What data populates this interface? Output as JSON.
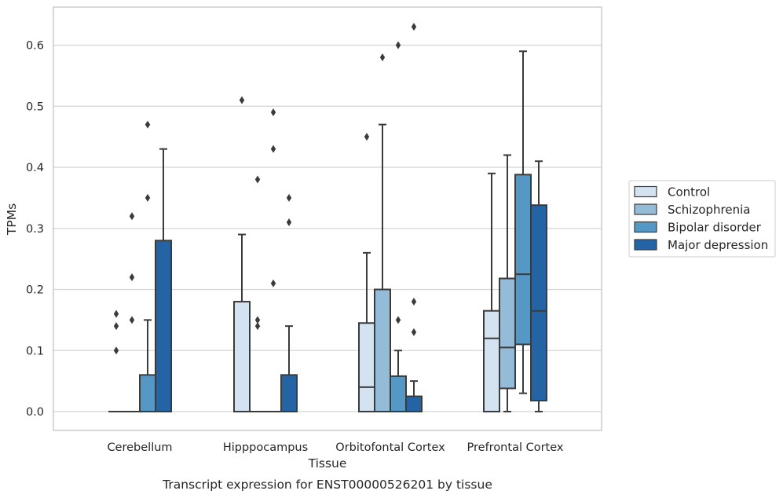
{
  "chart_data": {
    "type": "box",
    "title": "Transcript expression for ENST00000526201 by tissue",
    "xlabel": "Tissue",
    "ylabel": "TPMs",
    "categories": [
      "Cerebellum",
      "Hipppocampus",
      "Orbitofontal Cortex",
      "Prefrontal Cortex"
    ],
    "ylim": [
      -0.03,
      0.665
    ],
    "yticks": [
      0.0,
      0.1,
      0.2,
      0.3,
      0.4,
      0.5,
      0.6
    ],
    "ytick_labels": [
      "0.0",
      "0.1",
      "0.2",
      "0.3",
      "0.4",
      "0.5",
      "0.6"
    ],
    "grid": "horizontal",
    "legend_position": "right",
    "series": [
      {
        "name": "Control",
        "color": "#d4e3f2",
        "boxes": [
          {
            "min": 0,
            "q1": 0,
            "median": 0,
            "q3": 0,
            "max": 0,
            "outliers": [
              0.1,
              0.14,
              0.16
            ]
          },
          {
            "min": 0,
            "q1": 0,
            "median": 0,
            "q3": 0.18,
            "max": 0.29,
            "outliers": [
              0.51
            ]
          },
          {
            "min": 0,
            "q1": 0,
            "median": 0.04,
            "q3": 0.145,
            "max": 0.26,
            "outliers": [
              0.45
            ]
          },
          {
            "min": 0,
            "q1": 0,
            "median": 0.12,
            "q3": 0.165,
            "max": 0.39,
            "outliers": []
          }
        ]
      },
      {
        "name": "Schizophrenia",
        "color": "#94bcd8",
        "boxes": [
          {
            "min": 0,
            "q1": 0,
            "median": 0,
            "q3": 0,
            "max": 0,
            "outliers": [
              0.15,
              0.22,
              0.32
            ]
          },
          {
            "min": 0,
            "q1": 0,
            "median": 0,
            "q3": 0,
            "max": 0,
            "outliers": [
              0.14,
              0.15,
              0.38
            ]
          },
          {
            "min": 0,
            "q1": 0,
            "median": 0,
            "q3": 0.2,
            "max": 0.47,
            "outliers": [
              0.58
            ]
          },
          {
            "min": 0,
            "q1": 0.038,
            "median": 0.105,
            "q3": 0.218,
            "max": 0.42,
            "outliers": []
          }
        ]
      },
      {
        "name": "Bipolar disorder",
        "color": "#5598c6",
        "boxes": [
          {
            "min": 0,
            "q1": 0,
            "median": 0,
            "q3": 0.06,
            "max": 0.15,
            "outliers": [
              0.35,
              0.47
            ]
          },
          {
            "min": 0,
            "q1": 0,
            "median": 0,
            "q3": 0,
            "max": 0,
            "outliers": [
              0.21,
              0.43,
              0.49
            ]
          },
          {
            "min": 0,
            "q1": 0,
            "median": 0,
            "q3": 0.058,
            "max": 0.1,
            "outliers": [
              0.15,
              0.6
            ]
          },
          {
            "min": 0.03,
            "q1": 0.11,
            "median": 0.225,
            "q3": 0.388,
            "max": 0.59,
            "outliers": []
          }
        ]
      },
      {
        "name": "Major depression",
        "color": "#2464a4",
        "boxes": [
          {
            "min": 0,
            "q1": 0,
            "median": 0,
            "q3": 0.28,
            "max": 0.43,
            "outliers": []
          },
          {
            "min": 0,
            "q1": 0,
            "median": 0,
            "q3": 0.06,
            "max": 0.14,
            "outliers": [
              0.31,
              0.35
            ]
          },
          {
            "min": 0,
            "q1": 0,
            "median": 0,
            "q3": 0.025,
            "max": 0.05,
            "outliers": [
              0.13,
              0.18,
              0.63
            ]
          },
          {
            "min": 0,
            "q1": 0.018,
            "median": 0.165,
            "q3": 0.338,
            "max": 0.41,
            "outliers": []
          }
        ]
      }
    ]
  }
}
